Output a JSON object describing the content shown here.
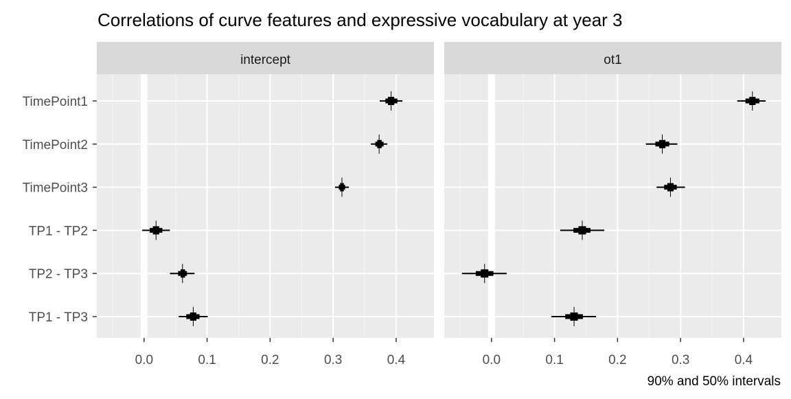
{
  "chart_data": {
    "type": "interval",
    "title": "Correlations of curve features and expressive vocabulary at year 3",
    "caption": "90% and 50% intervals",
    "categories": [
      "TimePoint1",
      "TimePoint2",
      "TimePoint3",
      "TP1 - TP2",
      "TP2 - TP3",
      "TP1 - TP3"
    ],
    "x_ticks": [
      0.0,
      0.1,
      0.2,
      0.3,
      0.4
    ],
    "x_tick_labels": [
      "0.0",
      "0.1",
      "0.2",
      "0.3",
      "0.4"
    ],
    "xlim": [
      -0.075,
      0.46
    ],
    "reference_line": 0,
    "grid": true,
    "panels": [
      {
        "strip": "intercept",
        "points": [
          {
            "label": "TimePoint1",
            "median": 0.392,
            "inner": [
              0.383,
              0.402
            ],
            "outer": [
              0.374,
              0.41
            ],
            "range": [
              0.387,
              0.397
            ]
          },
          {
            "label": "TimePoint2",
            "median": 0.373,
            "inner": [
              0.367,
              0.38
            ],
            "outer": [
              0.36,
              0.386
            ],
            "range": [
              0.37,
              0.377
            ]
          },
          {
            "label": "TimePoint3",
            "median": 0.314,
            "inner": [
              0.309,
              0.319
            ],
            "outer": [
              0.303,
              0.325
            ],
            "range": [
              0.311,
              0.317
            ]
          },
          {
            "label": "TP1 - TP2",
            "median": 0.019,
            "inner": [
              0.009,
              0.029
            ],
            "outer": [
              -0.003,
              0.041
            ],
            "range": [
              0.014,
              0.024
            ]
          },
          {
            "label": "TP2 - TP3",
            "median": 0.061,
            "inner": [
              0.054,
              0.068
            ],
            "outer": [
              0.041,
              0.08
            ],
            "range": [
              0.058,
              0.065
            ]
          },
          {
            "label": "TP1 - TP3",
            "median": 0.078,
            "inner": [
              0.067,
              0.088
            ],
            "outer": [
              0.055,
              0.101
            ],
            "range": [
              0.073,
              0.083
            ]
          }
        ]
      },
      {
        "strip": "ot1",
        "points": [
          {
            "label": "TimePoint1",
            "median": 0.414,
            "inner": [
              0.403,
              0.425
            ],
            "outer": [
              0.39,
              0.435
            ],
            "range": [
              0.409,
              0.419
            ]
          },
          {
            "label": "TimePoint2",
            "median": 0.271,
            "inner": [
              0.26,
              0.282
            ],
            "outer": [
              0.245,
              0.295
            ],
            "range": [
              0.266,
              0.276
            ]
          },
          {
            "label": "TimePoint3",
            "median": 0.284,
            "inner": [
              0.274,
              0.294
            ],
            "outer": [
              0.262,
              0.307
            ],
            "range": [
              0.279,
              0.289
            ]
          },
          {
            "label": "TP1 - TP2",
            "median": 0.144,
            "inner": [
              0.13,
              0.157
            ],
            "outer": [
              0.109,
              0.179
            ],
            "range": [
              0.138,
              0.15
            ]
          },
          {
            "label": "TP2 - TP3",
            "median": -0.011,
            "inner": [
              -0.025,
              0.003
            ],
            "outer": [
              -0.047,
              0.024
            ],
            "range": [
              -0.017,
              -0.005
            ]
          },
          {
            "label": "TP1 - TP3",
            "median": 0.131,
            "inner": [
              0.117,
              0.145
            ],
            "outer": [
              0.095,
              0.166
            ],
            "range": [
              0.125,
              0.137
            ]
          }
        ]
      }
    ]
  }
}
